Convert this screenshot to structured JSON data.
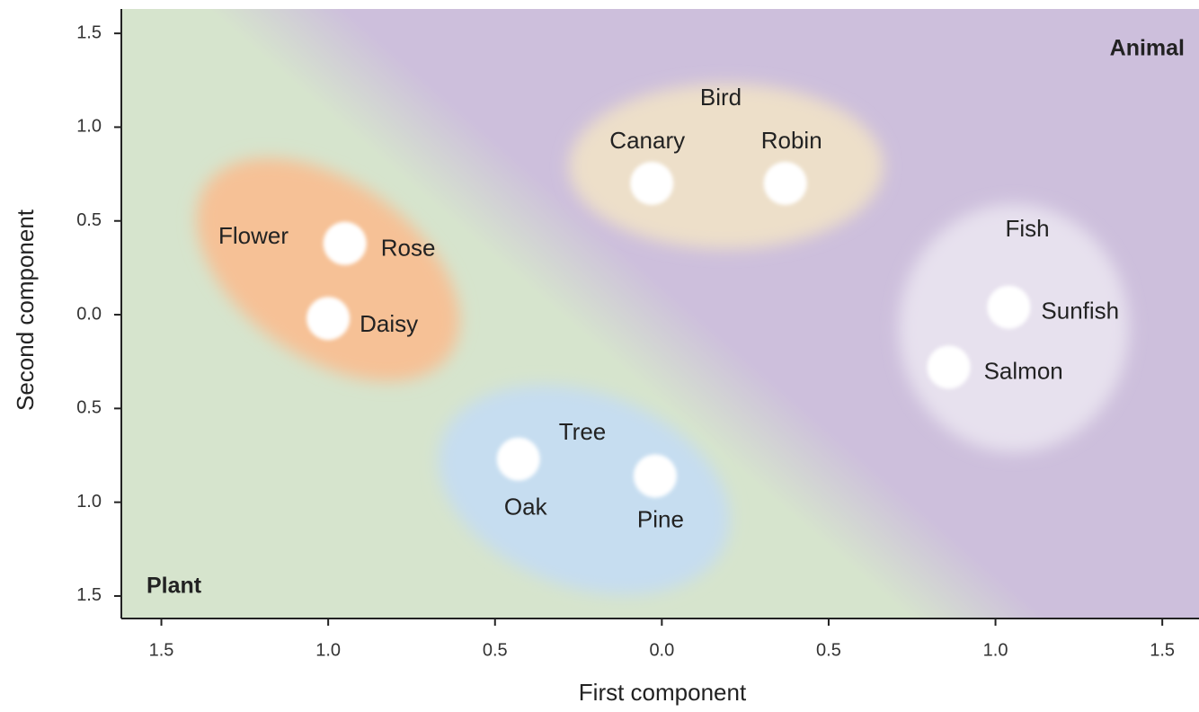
{
  "chart_data": {
    "type": "scatter",
    "xlabel": "First component",
    "ylabel": "Second component",
    "annotations": [
      "Plant",
      "Animal"
    ],
    "marker_color": "#ffffff",
    "xlim": [
      -1.62,
      1.61
    ],
    "ylim": [
      -1.62,
      1.63
    ],
    "xticks": [
      {
        "value": -1.5,
        "label": "1.5"
      },
      {
        "value": -1.0,
        "label": "1.0"
      },
      {
        "value": -0.5,
        "label": "0.5"
      },
      {
        "value": 0,
        "label": "0.0"
      },
      0.5,
      {
        "value": 1.0,
        "label": "1.0"
      },
      1.5
    ],
    "yticks": [
      {
        "value": -1.5,
        "label": "1.5"
      },
      {
        "value": -1.0,
        "label": "1.0"
      },
      {
        "value": -0.5,
        "label": "0.5"
      },
      {
        "value": 0,
        "label": "0.0"
      },
      0.5,
      {
        "value": 1.0,
        "label": "1.0"
      },
      1.5
    ],
    "series": [
      {
        "name": "Flower",
        "color": "#f6c196",
        "labels": [
          "Rose",
          "Daisy"
        ],
        "x": [
          -0.95,
          -1.0
        ],
        "values": [
          0.38,
          -0.02
        ]
      },
      {
        "name": "Bird",
        "color": "#eddfc9",
        "labels": [
          "Canary",
          "Robin"
        ],
        "x": [
          -0.03,
          0.37
        ],
        "values": [
          0.7,
          0.7
        ]
      },
      {
        "name": "Fish",
        "color": "#e7e1ee",
        "labels": [
          "Sunfish",
          "Salmon"
        ],
        "x": [
          1.04,
          0.86
        ],
        "values": [
          0.04,
          -0.28
        ]
      },
      {
        "name": "Tree",
        "color": "#c6ddf0",
        "labels": [
          "Oak",
          "Pine"
        ],
        "x": [
          -0.43,
          -0.02
        ],
        "values": [
          -0.77,
          -0.86
        ]
      }
    ]
  }
}
